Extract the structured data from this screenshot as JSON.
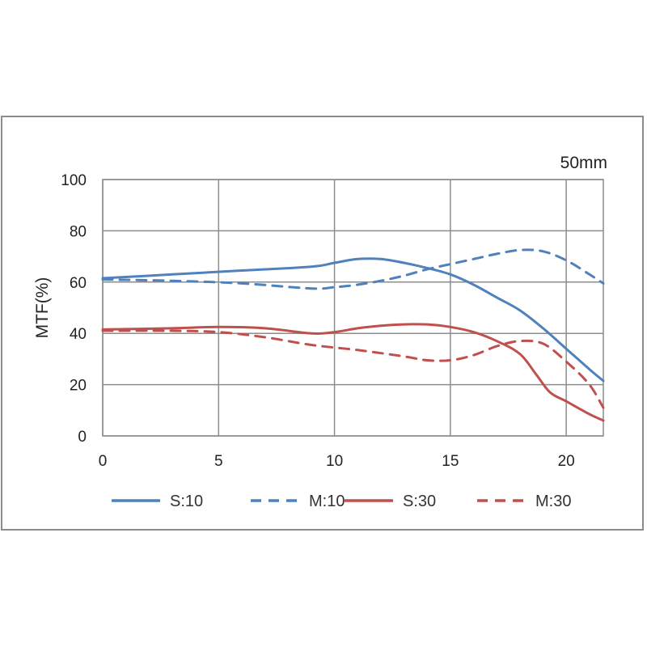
{
  "chart_data": {
    "type": "line",
    "title": "50mm",
    "xlabel": "",
    "ylabel": "MTF(%)",
    "xlim": [
      0,
      21.6
    ],
    "ylim": [
      0,
      100
    ],
    "xticks": [
      "0",
      "5",
      "10",
      "15",
      "20"
    ],
    "yticks": [
      "0",
      "20",
      "40",
      "60",
      "80",
      "100"
    ],
    "grid": true,
    "legend_position": "bottom",
    "series": [
      {
        "name": "S:10",
        "color": "#4f81bd",
        "dash": "solid",
        "points": [
          [
            0,
            61.5
          ],
          [
            3,
            63
          ],
          [
            6,
            64.5
          ],
          [
            9,
            66
          ],
          [
            10,
            67.5
          ],
          [
            11,
            69
          ],
          [
            12,
            69
          ],
          [
            13,
            67.5
          ],
          [
            14,
            65.5
          ],
          [
            15,
            63
          ],
          [
            16,
            59
          ],
          [
            17,
            54
          ],
          [
            18,
            49
          ],
          [
            19,
            42
          ],
          [
            20,
            34
          ],
          [
            21,
            26
          ],
          [
            21.6,
            21.5
          ]
        ]
      },
      {
        "name": "M:10",
        "color": "#4f81bd",
        "dash": "dashed",
        "points": [
          [
            0,
            61
          ],
          [
            3,
            60.5
          ],
          [
            6,
            59.5
          ],
          [
            9,
            57.5
          ],
          [
            10,
            58
          ],
          [
            11,
            59
          ],
          [
            12,
            60.5
          ],
          [
            13,
            62.5
          ],
          [
            14,
            65
          ],
          [
            15,
            67
          ],
          [
            16,
            69
          ],
          [
            17,
            71
          ],
          [
            18,
            72.5
          ],
          [
            19,
            72
          ],
          [
            20,
            68.5
          ],
          [
            21,
            63
          ],
          [
            21.6,
            59.5
          ]
        ]
      },
      {
        "name": "S:30",
        "color": "#c0504d",
        "dash": "solid",
        "points": [
          [
            0,
            41.5
          ],
          [
            3,
            42
          ],
          [
            5,
            42.5
          ],
          [
            7,
            42
          ],
          [
            9,
            40
          ],
          [
            10,
            40.5
          ],
          [
            11,
            42
          ],
          [
            12,
            43
          ],
          [
            13,
            43.5
          ],
          [
            14,
            43.5
          ],
          [
            15,
            42.5
          ],
          [
            16,
            40.5
          ],
          [
            17,
            37
          ],
          [
            18,
            32
          ],
          [
            18.7,
            24
          ],
          [
            19.3,
            17
          ],
          [
            20,
            13.5
          ],
          [
            21,
            8.5
          ],
          [
            21.6,
            6
          ]
        ]
      },
      {
        "name": "M:30",
        "color": "#c0504d",
        "dash": "dashed",
        "points": [
          [
            0,
            41
          ],
          [
            3,
            41
          ],
          [
            5,
            40.5
          ],
          [
            7,
            38.5
          ],
          [
            9,
            35.5
          ],
          [
            11,
            33.5
          ],
          [
            13,
            31
          ],
          [
            14,
            29.5
          ],
          [
            15,
            29.5
          ],
          [
            16,
            31.5
          ],
          [
            17,
            35
          ],
          [
            18,
            37
          ],
          [
            19,
            36
          ],
          [
            20,
            29
          ],
          [
            21,
            20
          ],
          [
            21.6,
            11
          ]
        ]
      }
    ]
  }
}
